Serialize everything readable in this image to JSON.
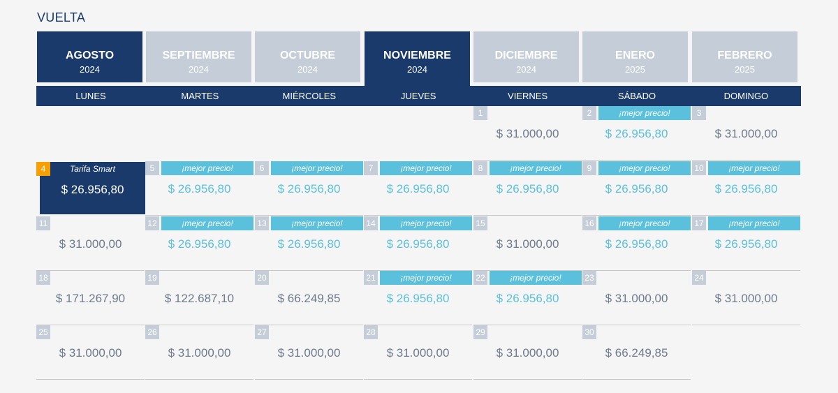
{
  "title": "VUELTA",
  "months": [
    {
      "name": "AGOSTO",
      "year": "2024",
      "state": "active"
    },
    {
      "name": "SEPTIEMBRE",
      "year": "2024",
      "state": "inactive"
    },
    {
      "name": "OCTUBRE",
      "year": "2024",
      "state": "inactive"
    },
    {
      "name": "NOVIEMBRE",
      "year": "2024",
      "state": "active"
    },
    {
      "name": "DICIEMBRE",
      "year": "2024",
      "state": "inactive"
    },
    {
      "name": "ENERO",
      "year": "2025",
      "state": "inactive"
    },
    {
      "name": "FEBRERO",
      "year": "2025",
      "state": "inactive"
    }
  ],
  "weekdays": [
    "LUNES",
    "MARTES",
    "MIÉRCOLES",
    "JUEVES",
    "VIERNES",
    "SÁBADO",
    "DOMINGO"
  ],
  "smart_label": "Tarifa Smart",
  "best_label": "¡mejor precio!",
  "weeks": [
    [
      null,
      null,
      null,
      null,
      {
        "day": "1",
        "price": "$ 31.000,00"
      },
      {
        "day": "2",
        "price": "$ 26.956,80",
        "best": true
      },
      {
        "day": "3",
        "price": "$ 31.000,00"
      }
    ],
    [
      {
        "day": "4",
        "price": "$ 26.956,80",
        "selected": true
      },
      {
        "day": "5",
        "price": "$ 26.956,80",
        "best": true
      },
      {
        "day": "6",
        "price": "$ 26.956,80",
        "best": true
      },
      {
        "day": "7",
        "price": "$ 26.956,80",
        "best": true
      },
      {
        "day": "8",
        "price": "$ 26.956,80",
        "best": true
      },
      {
        "day": "9",
        "price": "$ 26.956,80",
        "best": true
      },
      {
        "day": "10",
        "price": "$ 26.956,80",
        "best": true
      }
    ],
    [
      {
        "day": "11",
        "price": "$ 31.000,00"
      },
      {
        "day": "12",
        "price": "$ 26.956,80",
        "best": true
      },
      {
        "day": "13",
        "price": "$ 26.956,80",
        "best": true
      },
      {
        "day": "14",
        "price": "$ 26.956,80",
        "best": true
      },
      {
        "day": "15",
        "price": "$ 31.000,00"
      },
      {
        "day": "16",
        "price": "$ 26.956,80",
        "best": true
      },
      {
        "day": "17",
        "price": "$ 26.956,80",
        "best": true
      }
    ],
    [
      {
        "day": "18",
        "price": "$ 171.267,90"
      },
      {
        "day": "19",
        "price": "$ 122.687,10"
      },
      {
        "day": "20",
        "price": "$ 66.249,85"
      },
      {
        "day": "21",
        "price": "$ 26.956,80",
        "best": true
      },
      {
        "day": "22",
        "price": "$ 26.956,80",
        "best": true
      },
      {
        "day": "23",
        "price": "$ 31.000,00"
      },
      {
        "day": "24",
        "price": "$ 31.000,00"
      }
    ],
    [
      {
        "day": "25",
        "price": "$ 31.000,00"
      },
      {
        "day": "26",
        "price": "$ 31.000,00"
      },
      {
        "day": "27",
        "price": "$ 31.000,00"
      },
      {
        "day": "28",
        "price": "$ 31.000,00"
      },
      {
        "day": "29",
        "price": "$ 31.000,00"
      },
      {
        "day": "30",
        "price": "$ 66.249,85"
      },
      null
    ]
  ],
  "colors": {
    "navy": "#1a3a6b",
    "inactive_tab": "#c5ced8",
    "best_price": "#5bc0dc",
    "selected_day": "#f5a000",
    "price_text": "#6e7b8c"
  }
}
